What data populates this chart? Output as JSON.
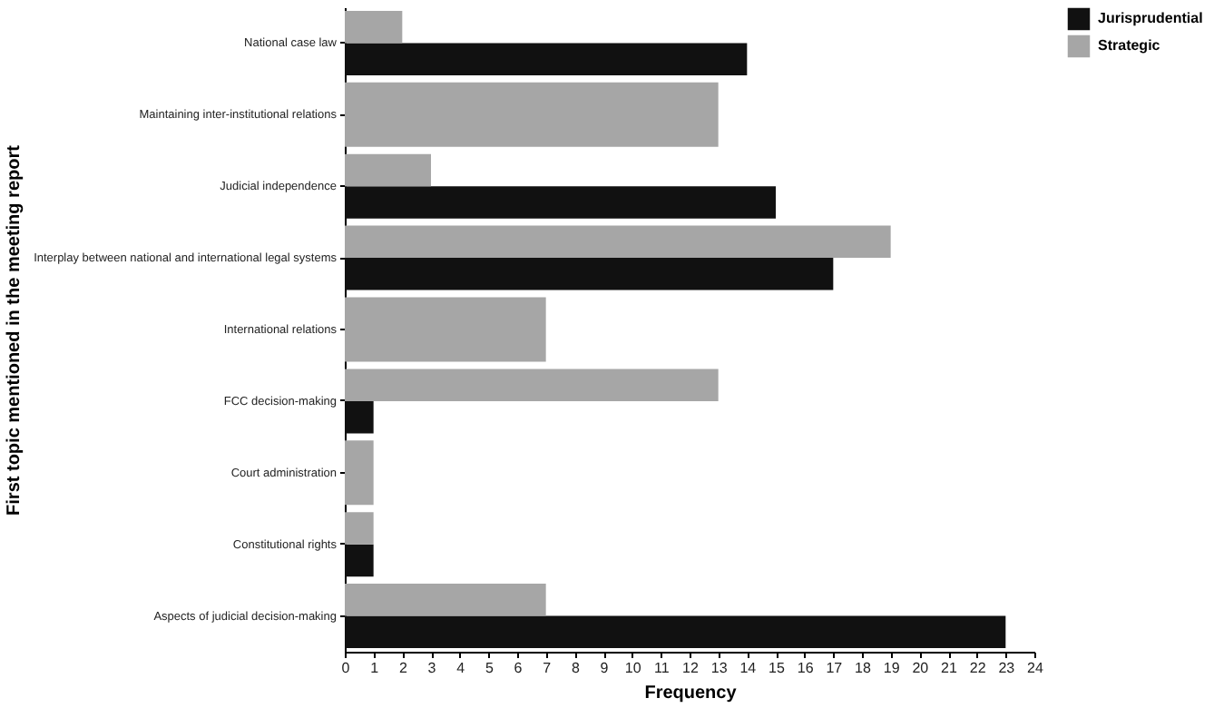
{
  "chart_data": {
    "type": "bar",
    "orientation": "horizontal",
    "xlabel": "Frequency",
    "ylabel": "First topic mentioned in the meeting report",
    "categories": [
      "National case law",
      "Maintaining inter-institutional relations",
      "Judicial independence",
      "Interplay between national and international legal systems",
      "International relations",
      "FCC decision-making",
      "Court administration",
      "Constitutional rights",
      "Aspects of judicial decision-making"
    ],
    "series": [
      {
        "name": "Jurisprudential",
        "color": "#111111",
        "values": [
          14,
          null,
          15,
          17,
          null,
          1,
          null,
          1,
          23
        ]
      },
      {
        "name": "Strategic",
        "color": "#a6a6a6",
        "values": [
          2,
          13,
          3,
          19,
          7,
          13,
          1,
          1,
          7
        ]
      }
    ],
    "xlim": [
      0,
      24
    ],
    "xticks": [
      0,
      1,
      2,
      3,
      4,
      5,
      6,
      7,
      8,
      9,
      10,
      11,
      12,
      13,
      14,
      15,
      16,
      17,
      18,
      19,
      20,
      21,
      22,
      23,
      24
    ],
    "legend": "right",
    "grid": false
  }
}
